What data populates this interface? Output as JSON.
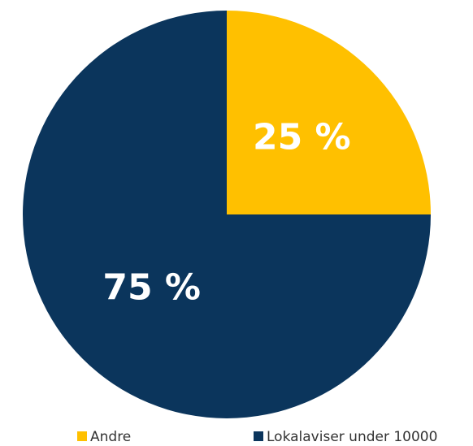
{
  "chart_data": {
    "type": "pie",
    "categories": [
      "Andre",
      "Lokalaviser under 10000"
    ],
    "values": [
      25,
      75
    ],
    "value_labels": [
      "25 %",
      "75 %"
    ],
    "colors": [
      "#ffc000",
      "#0b355c"
    ],
    "legend": "bottom"
  }
}
